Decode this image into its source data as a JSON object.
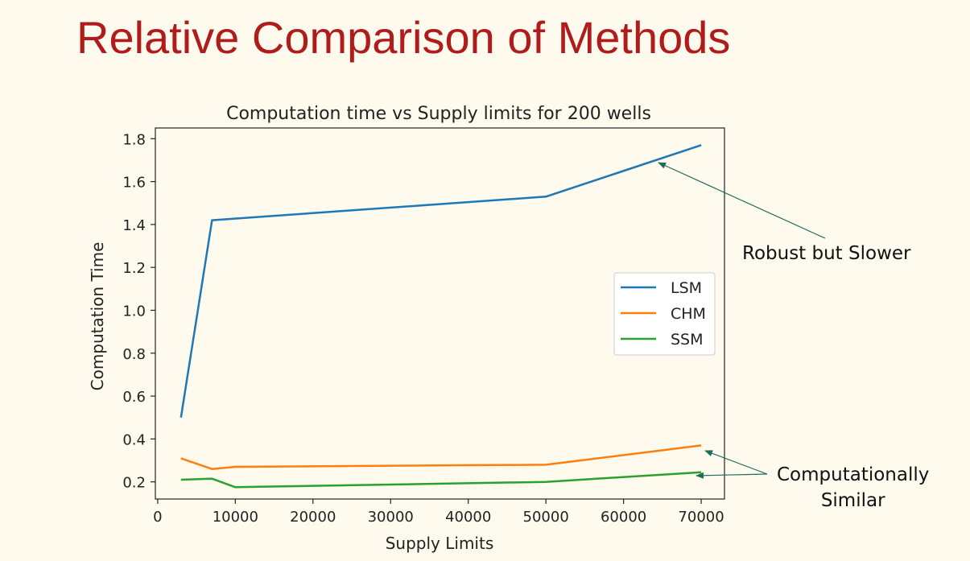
{
  "slide": {
    "title": "Relative Comparison of Methods"
  },
  "annotations": {
    "robust": "Robust but Slower",
    "similar_line1": "Computationally",
    "similar_line2": "Similar"
  },
  "colors": {
    "title": "#b01c1c",
    "background": "#fffaee",
    "annotation_arrow": "#1f6b5e"
  },
  "chart_data": {
    "type": "line",
    "title": "Computation time vs Supply limits for 200 wells",
    "xlabel": "Supply Limits",
    "ylabel": "Computation Time",
    "xlim": [
      -300,
      73000
    ],
    "ylim": [
      0.12,
      1.85
    ],
    "xticks": [
      0,
      10000,
      20000,
      30000,
      40000,
      50000,
      60000,
      70000
    ],
    "yticks": [
      0.2,
      0.4,
      0.6,
      0.8,
      1.0,
      1.2,
      1.4,
      1.6,
      1.8
    ],
    "ytick_labels": [
      "0.2",
      "0.4",
      "0.6",
      "0.8",
      "1.0",
      "1.2",
      "1.4",
      "1.6",
      "1.8"
    ],
    "grid": false,
    "legend_position": "center-right",
    "series": [
      {
        "name": "LSM",
        "color": "#1f77b4",
        "points": [
          [
            3000,
            0.5
          ],
          [
            7000,
            1.42
          ],
          [
            50000,
            1.53
          ],
          [
            70000,
            1.77
          ]
        ]
      },
      {
        "name": "CHM",
        "color": "#ff7f0e",
        "points": [
          [
            3000,
            0.31
          ],
          [
            7000,
            0.26
          ],
          [
            10000,
            0.27
          ],
          [
            50000,
            0.28
          ],
          [
            70000,
            0.37
          ]
        ]
      },
      {
        "name": "SSM",
        "color": "#2ca02c",
        "points": [
          [
            3000,
            0.21
          ],
          [
            7000,
            0.215
          ],
          [
            10000,
            0.175
          ],
          [
            50000,
            0.2
          ],
          [
            70000,
            0.245
          ]
        ]
      }
    ]
  }
}
